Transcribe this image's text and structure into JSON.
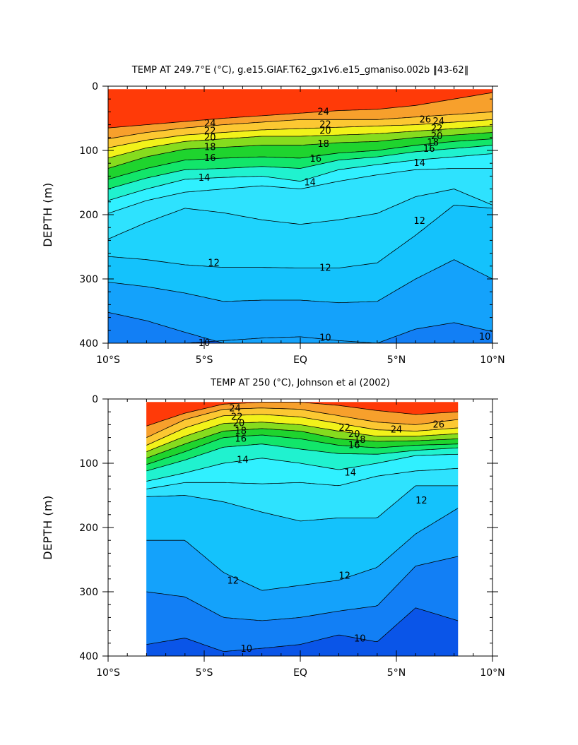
{
  "chart_data": [
    {
      "type": "contour",
      "title": "TEMP AT 249.7°E (°C), g.e15.GIAF.T62_gx1v6.e15_gmaniso.002b ‖43-62‖",
      "ylabel": "DEPTH (m)",
      "xlabel": "",
      "xlim": [
        -10,
        10
      ],
      "ylim": [
        0,
        400
      ],
      "y_inverted": true,
      "grid": false,
      "x_ticks": [
        {
          "value": -10,
          "label": "10°S"
        },
        {
          "value": -5,
          "label": "5°S"
        },
        {
          "value": 0,
          "label": "EQ"
        },
        {
          "value": 5,
          "label": "5°N"
        },
        {
          "value": 10,
          "label": "10°N"
        }
      ],
      "y_ticks": [
        {
          "value": 0,
          "label": "0"
        },
        {
          "value": 100,
          "label": "100"
        },
        {
          "value": 200,
          "label": "200"
        },
        {
          "value": 300,
          "label": "300"
        },
        {
          "value": 400,
          "label": "400"
        }
      ],
      "data_extent": {
        "x": [
          -10,
          10
        ],
        "y": [
          5,
          400
        ]
      },
      "isotherms": [
        {
          "t": 10,
          "x": [
            -10,
            -8,
            -6,
            -4,
            -2,
            0,
            2,
            4,
            6,
            8,
            10
          ],
          "depth": [
            400,
            400,
            400,
            396,
            392,
            390,
            396,
            400,
            400,
            400,
            400
          ]
        },
        {
          "t": 10.5,
          "x": [
            -10,
            -8,
            -6,
            -4,
            -2,
            0,
            2,
            4,
            6,
            8,
            10
          ],
          "depth": [
            352,
            365,
            383,
            400,
            400,
            400,
            400,
            400,
            378,
            368,
            382
          ]
        },
        {
          "t": 11,
          "x": [
            -10,
            -8,
            -6,
            -4,
            -2,
            0,
            2,
            4,
            6,
            8,
            10
          ],
          "depth": [
            305,
            312,
            322,
            335,
            333,
            333,
            337,
            335,
            300,
            270,
            300
          ]
        },
        {
          "t": 12,
          "x": [
            -10,
            -8,
            -6,
            -4,
            -2,
            0,
            2,
            4,
            6,
            8,
            10
          ],
          "depth": [
            265,
            270,
            278,
            282,
            282,
            283,
            283,
            275,
            232,
            185,
            190
          ]
        },
        {
          "t": 12.5,
          "x": [
            -10,
            -8,
            -6,
            -4,
            -2,
            0,
            2,
            4,
            6,
            8,
            10
          ],
          "depth": [
            238,
            212,
            190,
            197,
            208,
            215,
            208,
            198,
            172,
            160,
            185
          ]
        },
        {
          "t": 13,
          "x": [
            -10,
            -8,
            -6,
            -4,
            -2,
            0,
            2,
            4,
            6,
            8,
            10
          ],
          "depth": [
            198,
            178,
            165,
            160,
            155,
            160,
            148,
            138,
            130,
            128,
            128
          ]
        },
        {
          "t": 14,
          "x": [
            -10,
            -8,
            -6,
            -4,
            -2,
            0,
            2,
            4,
            6,
            8,
            10
          ],
          "depth": [
            178,
            160,
            145,
            142,
            140,
            148,
            130,
            122,
            115,
            110,
            105
          ]
        },
        {
          "t": 15,
          "x": [
            -10,
            -8,
            -6,
            -4,
            -2,
            0,
            2,
            4,
            6,
            8,
            10
          ],
          "depth": [
            160,
            143,
            130,
            128,
            125,
            128,
            115,
            110,
            102,
            97,
            92
          ]
        },
        {
          "t": 16,
          "x": [
            -10,
            -8,
            -6,
            -4,
            -2,
            0,
            2,
            4,
            6,
            8,
            10
          ],
          "depth": [
            145,
            128,
            115,
            112,
            110,
            112,
            104,
            100,
            92,
            86,
            82
          ]
        },
        {
          "t": 18,
          "x": [
            -10,
            -8,
            -6,
            -4,
            -2,
            0,
            2,
            4,
            6,
            8,
            10
          ],
          "depth": [
            128,
            110,
            98,
            95,
            92,
            92,
            88,
            86,
            80,
            76,
            72
          ]
        },
        {
          "t": 20,
          "x": [
            -10,
            -8,
            -6,
            -4,
            -2,
            0,
            2,
            4,
            6,
            8,
            10
          ],
          "depth": [
            112,
            96,
            86,
            82,
            78,
            78,
            76,
            74,
            70,
            66,
            62
          ]
        },
        {
          "t": 22,
          "x": [
            -10,
            -8,
            -6,
            -4,
            -2,
            0,
            2,
            4,
            6,
            8,
            10
          ],
          "depth": [
            96,
            84,
            76,
            72,
            68,
            66,
            64,
            62,
            60,
            56,
            52
          ]
        },
        {
          "t": 24,
          "x": [
            -10,
            -8,
            -6,
            -4,
            -2,
            0,
            2,
            4,
            6,
            8,
            10
          ],
          "depth": [
            82,
            72,
            65,
            60,
            56,
            52,
            52,
            52,
            48,
            44,
            40
          ]
        },
        {
          "t": 26,
          "x": [
            -10,
            -8,
            -6,
            -4,
            -2,
            0,
            2,
            4,
            6,
            8,
            10
          ],
          "depth": [
            65,
            60,
            55,
            50,
            46,
            42,
            38,
            36,
            30,
            20,
            10
          ]
        }
      ],
      "labels": [
        {
          "text": "10",
          "x": -5,
          "depth": 400
        },
        {
          "text": "10",
          "x": 1.3,
          "depth": 392
        },
        {
          "text": "10",
          "x": 9.6,
          "depth": 390
        },
        {
          "text": "12",
          "x": -4.5,
          "depth": 275
        },
        {
          "text": "12",
          "x": 1.3,
          "depth": 283
        },
        {
          "text": "12",
          "x": 6.2,
          "depth": 210
        },
        {
          "text": "14",
          "x": -5,
          "depth": 143
        },
        {
          "text": "14",
          "x": 0.5,
          "depth": 150
        },
        {
          "text": "14",
          "x": 6.2,
          "depth": 120
        },
        {
          "text": "16",
          "x": -4.7,
          "depth": 112
        },
        {
          "text": "16",
          "x": 0.8,
          "depth": 113
        },
        {
          "text": "16",
          "x": 6.7,
          "depth": 98
        },
        {
          "text": "18",
          "x": -4.7,
          "depth": 95
        },
        {
          "text": "18",
          "x": 1.2,
          "depth": 90
        },
        {
          "text": "18",
          "x": 6.9,
          "depth": 88
        },
        {
          "text": "20",
          "x": -4.7,
          "depth": 80
        },
        {
          "text": "20",
          "x": 1.3,
          "depth": 70
        },
        {
          "text": "20",
          "x": 7.1,
          "depth": 78
        },
        {
          "text": "22",
          "x": -4.7,
          "depth": 70
        },
        {
          "text": "22",
          "x": 1.3,
          "depth": 60
        },
        {
          "text": "22",
          "x": 7.1,
          "depth": 66
        },
        {
          "text": "24",
          "x": -4.7,
          "depth": 58
        },
        {
          "text": "24",
          "x": 1.2,
          "depth": 40
        },
        {
          "text": "24",
          "x": 7.2,
          "depth": 55
        },
        {
          "text": "26",
          "x": 6.5,
          "depth": 52
        }
      ]
    },
    {
      "type": "contour",
      "title": "TEMP AT 250 (°C), Johnson et al (2002)",
      "ylabel": "DEPTH (m)",
      "xlabel": "",
      "xlim": [
        -10,
        10
      ],
      "ylim": [
        0,
        400
      ],
      "y_inverted": true,
      "grid": false,
      "x_ticks": [
        {
          "value": -10,
          "label": "10°S"
        },
        {
          "value": -5,
          "label": "5°S"
        },
        {
          "value": 0,
          "label": "EQ"
        },
        {
          "value": 5,
          "label": "5°N"
        },
        {
          "value": 10,
          "label": "10°N"
        }
      ],
      "y_ticks": [
        {
          "value": 0,
          "label": "0"
        },
        {
          "value": 100,
          "label": "100"
        },
        {
          "value": 200,
          "label": "200"
        },
        {
          "value": 300,
          "label": "300"
        },
        {
          "value": 400,
          "label": "400"
        }
      ],
      "data_extent": {
        "x": [
          -8,
          8.2
        ],
        "y": [
          5,
          400
        ]
      },
      "isotherms": [
        {
          "t": 10,
          "x": [
            -8,
            -6,
            -4,
            -2,
            0,
            2,
            4,
            6,
            8.2
          ],
          "depth": [
            382,
            372,
            393,
            388,
            382,
            367,
            378,
            325,
            345
          ]
        },
        {
          "t": 10.5,
          "x": [
            -8,
            -6,
            -4,
            -2,
            0,
            2,
            4,
            6,
            8.2
          ],
          "depth": [
            300,
            308,
            340,
            345,
            340,
            330,
            322,
            260,
            245
          ]
        },
        {
          "t": 11,
          "x": [
            -8,
            -6,
            -4,
            -2,
            0,
            2,
            4,
            6,
            8.2
          ],
          "depth": [
            220,
            220,
            270,
            298,
            290,
            282,
            262,
            210,
            170
          ]
        },
        {
          "t": 12,
          "x": [
            -8,
            -6,
            -4,
            -2,
            0,
            2,
            4,
            6,
            8.2
          ],
          "depth": [
            152,
            150,
            160,
            176,
            190,
            185,
            185,
            135,
            135
          ]
        },
        {
          "t": 13,
          "x": [
            -8,
            -6,
            -4,
            -2,
            0,
            2,
            4,
            6,
            8.2
          ],
          "depth": [
            140,
            130,
            130,
            132,
            130,
            135,
            120,
            112,
            108
          ]
        },
        {
          "t": 14,
          "x": [
            -8,
            -6,
            -4,
            -2,
            0,
            2,
            4,
            6,
            8.2
          ],
          "depth": [
            128,
            115,
            100,
            92,
            100,
            110,
            100,
            88,
            86
          ]
        },
        {
          "t": 15,
          "x": [
            -8,
            -6,
            -4,
            -2,
            0,
            2,
            4,
            6,
            8.2
          ],
          "depth": [
            112,
            95,
            75,
            70,
            78,
            85,
            86,
            80,
            76
          ]
        },
        {
          "t": 16,
          "x": [
            -8,
            -6,
            -4,
            -2,
            0,
            2,
            4,
            6,
            8.2
          ],
          "depth": [
            102,
            82,
            60,
            56,
            62,
            72,
            76,
            72,
            70
          ]
        },
        {
          "t": 18,
          "x": [
            -8,
            -6,
            -4,
            -2,
            0,
            2,
            4,
            6,
            8.2
          ],
          "depth": [
            92,
            70,
            50,
            46,
            50,
            62,
            66,
            65,
            62
          ]
        },
        {
          "t": 20,
          "x": [
            -8,
            -6,
            -4,
            -2,
            0,
            2,
            4,
            6,
            8.2
          ],
          "depth": [
            82,
            58,
            38,
            36,
            40,
            50,
            58,
            58,
            54
          ]
        },
        {
          "t": 22,
          "x": [
            -8,
            -6,
            -4,
            -2,
            0,
            2,
            4,
            6,
            8.2
          ],
          "depth": [
            72,
            45,
            26,
            24,
            28,
            38,
            48,
            50,
            45
          ]
        },
        {
          "t": 24,
          "x": [
            -8,
            -6,
            -4,
            -2,
            0,
            2,
            4,
            6,
            8.2
          ],
          "depth": [
            60,
            32,
            16,
            14,
            16,
            26,
            36,
            40,
            32
          ]
        },
        {
          "t": 26,
          "x": [
            -8,
            -6,
            -4,
            -2,
            0,
            2,
            4,
            6,
            8.2
          ],
          "depth": [
            42,
            22,
            8,
            5,
            5,
            10,
            18,
            24,
            20
          ]
        }
      ],
      "labels": [
        {
          "text": "10",
          "x": -2.8,
          "depth": 389
        },
        {
          "text": "10",
          "x": 3.1,
          "depth": 373
        },
        {
          "text": "12",
          "x": -3.5,
          "depth": 283
        },
        {
          "text": "12",
          "x": 2.3,
          "depth": 275
        },
        {
          "text": "12",
          "x": 6.3,
          "depth": 158
        },
        {
          "text": "14",
          "x": -3,
          "depth": 95
        },
        {
          "text": "14",
          "x": 2.6,
          "depth": 115
        },
        {
          "text": "16",
          "x": -3.1,
          "depth": 62
        },
        {
          "text": "16",
          "x": 2.8,
          "depth": 72
        },
        {
          "text": "18",
          "x": -3.1,
          "depth": 50
        },
        {
          "text": "18",
          "x": 3.1,
          "depth": 64
        },
        {
          "text": "20",
          "x": -3.2,
          "depth": 38
        },
        {
          "text": "20",
          "x": 2.8,
          "depth": 55
        },
        {
          "text": "22",
          "x": -3.3,
          "depth": 28
        },
        {
          "text": "22",
          "x": 2.3,
          "depth": 45
        },
        {
          "text": "24",
          "x": -3.4,
          "depth": 15
        },
        {
          "text": "24",
          "x": 5,
          "depth": 48
        },
        {
          "text": "26",
          "x": 7.2,
          "depth": 40
        }
      ]
    }
  ],
  "colors": {
    "background": "#ffffff",
    "land_mask": "#ffffff",
    "contour_line": "#000000",
    "levels": [
      {
        "below": 10,
        "color": "#0a55e8"
      },
      {
        "below": 10.5,
        "color": "#127ff5"
      },
      {
        "below": 11,
        "color": "#14a2fb"
      },
      {
        "below": 12,
        "color": "#14c2fc"
      },
      {
        "below": 12.5,
        "color": "#1ed3fd"
      },
      {
        "below": 13,
        "color": "#2ee2fe"
      },
      {
        "below": 14,
        "color": "#30f0ff"
      },
      {
        "below": 15,
        "color": "#20f2cf"
      },
      {
        "below": 16,
        "color": "#12e66a"
      },
      {
        "below": 18,
        "color": "#1fd42e"
      },
      {
        "below": 20,
        "color": "#86dc1e"
      },
      {
        "below": 22,
        "color": "#f2f21a"
      },
      {
        "below": 24,
        "color": "#fcc832"
      },
      {
        "below": 26,
        "color": "#f7a02c"
      },
      {
        "below": 99,
        "color": "#ff3a08"
      }
    ]
  }
}
